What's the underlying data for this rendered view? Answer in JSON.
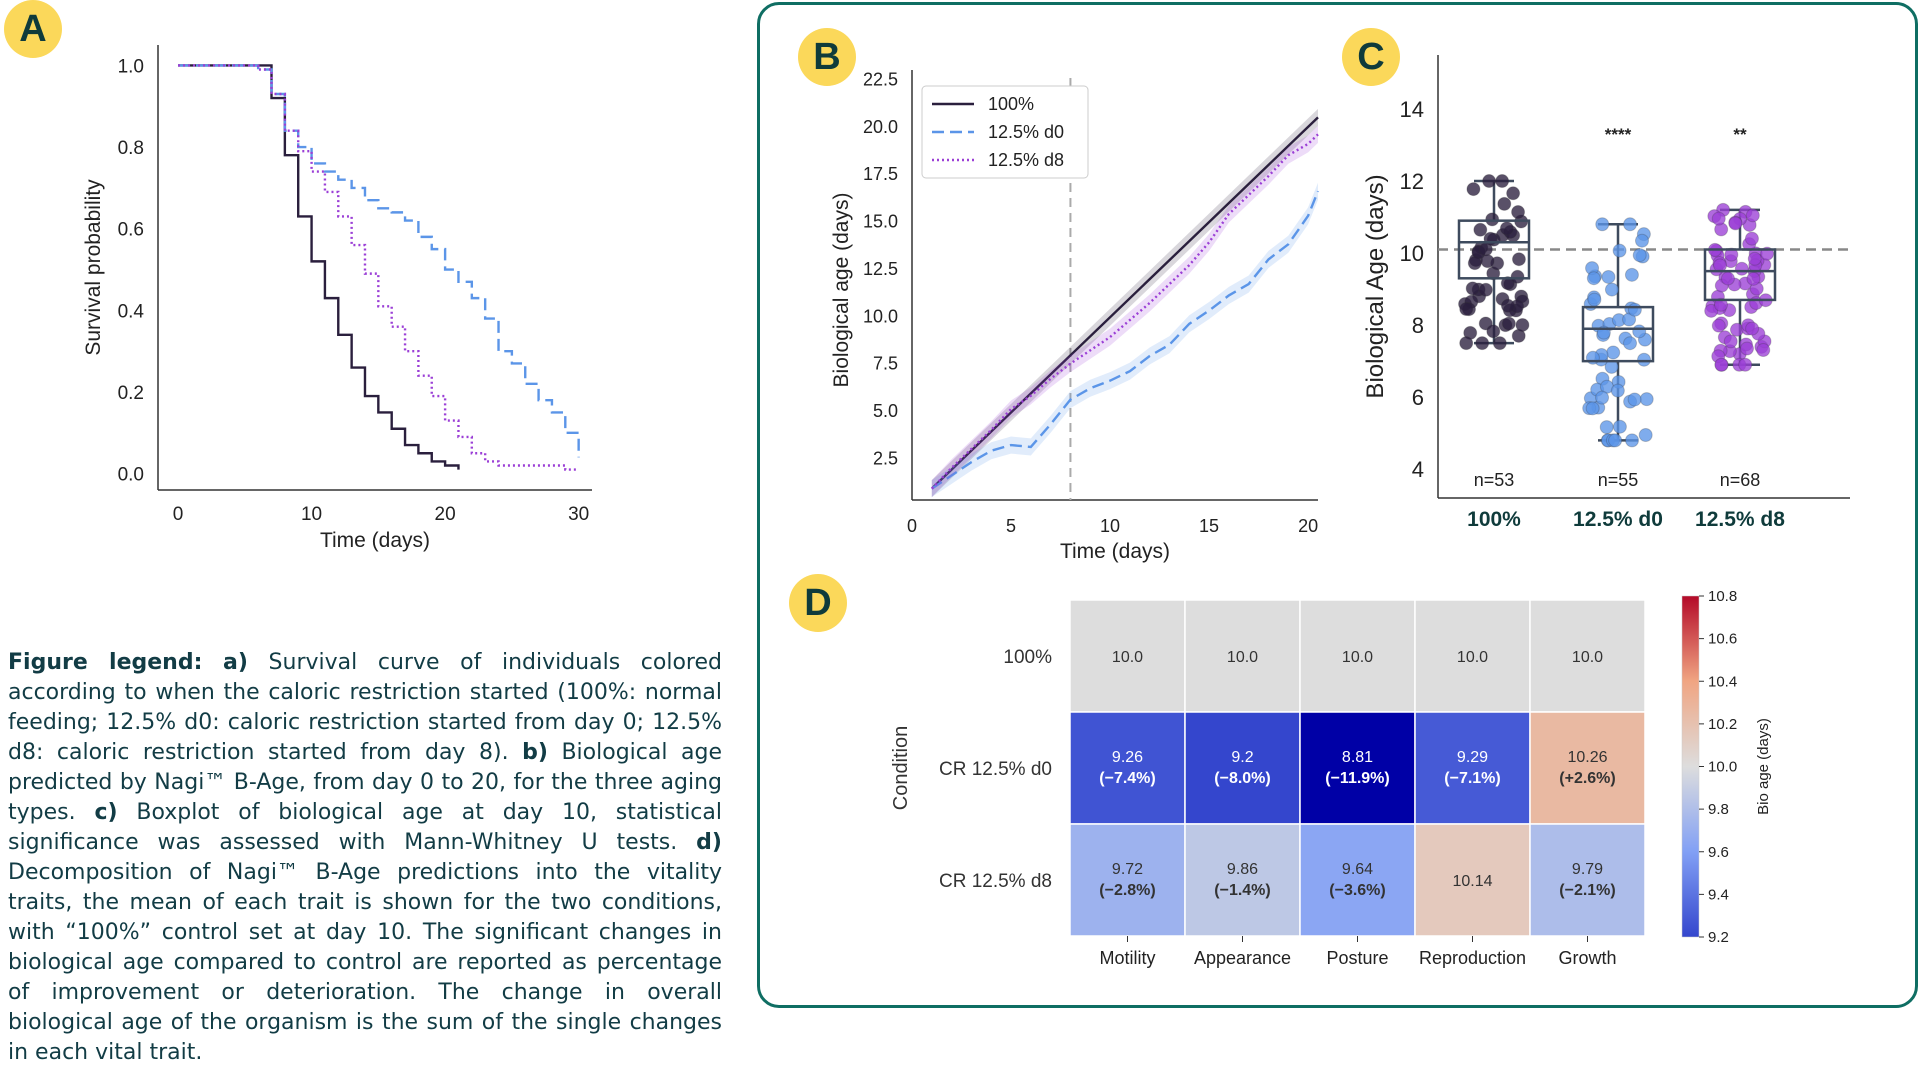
{
  "panels": {
    "a": "A",
    "b": "B",
    "c": "C",
    "d": "D"
  },
  "legend": {
    "lead": "Figure legend:",
    "a_label": "a)",
    "a_text": " Survival curve of individuals colored according to when the caloric restriction started (100%: normal feeding; 12.5% d0: caloric restriction started from day 0; 12.5% d8: caloric restriction started from day 8).",
    "b_label": "b)",
    "b_text": " Biological age predicted by Nagi™ B-Age, from day 0 to 20, for the three aging types.",
    "c_label": "c)",
    "c_text": " Boxplot of biological age at day 10, statistical significance was assessed with Mann-Whitney U tests.",
    "d_label": "d)",
    "d_text": " Decomposition of Nagi™ B-Age predictions into the vitality traits, the mean of each trait is shown for the two conditions, with “100%” control set at day 10. The significant changes in biological age compared to control are reported as percentage of improvement or deterioration. The change in overall biological age of the organism is the sum of the single changes in each vital trait."
  },
  "colors": {
    "c100": "#2a1f3d",
    "cd0": "#5b95e8",
    "cd8": "#9b3fd6",
    "badge": "#fbd85a",
    "frame": "#0f6e63",
    "text": "#123c45"
  },
  "chart_data": [
    {
      "id": "A",
      "type": "line",
      "title": "",
      "xlabel": "Time (days)",
      "ylabel": "Survival probability",
      "xlim": [
        -1.5,
        31
      ],
      "ylim": [
        -0.04,
        1.05
      ],
      "xticks": [
        0,
        10,
        20,
        30
      ],
      "yticks": [
        "0.0",
        "0.2",
        "0.4",
        "0.6",
        "0.8",
        "1.0"
      ],
      "series": [
        {
          "name": "100%",
          "style": "solid",
          "x": [
            0,
            5,
            6,
            7,
            8,
            9,
            10,
            11,
            12,
            13,
            14,
            15,
            16,
            17,
            18,
            19,
            20,
            21
          ],
          "y": [
            1.0,
            1.0,
            1.0,
            0.92,
            0.78,
            0.63,
            0.52,
            0.43,
            0.34,
            0.26,
            0.19,
            0.15,
            0.11,
            0.07,
            0.05,
            0.03,
            0.02,
            0.01
          ]
        },
        {
          "name": "12.5% d0",
          "style": "dashed",
          "x": [
            0,
            5,
            6,
            7,
            8,
            9,
            10,
            11,
            12,
            13,
            14,
            15,
            16,
            17,
            18,
            19,
            20,
            21,
            22,
            23,
            24,
            25,
            26,
            27,
            28,
            29,
            30
          ],
          "y": [
            1.0,
            1.0,
            0.99,
            0.93,
            0.84,
            0.8,
            0.76,
            0.74,
            0.72,
            0.7,
            0.67,
            0.65,
            0.64,
            0.62,
            0.58,
            0.55,
            0.5,
            0.47,
            0.43,
            0.38,
            0.3,
            0.27,
            0.22,
            0.18,
            0.15,
            0.1,
            0.04
          ]
        },
        {
          "name": "12.5% d8",
          "style": "dotted",
          "x": [
            0,
            5,
            6,
            7,
            8,
            9,
            10,
            11,
            12,
            13,
            14,
            15,
            16,
            17,
            18,
            19,
            20,
            21,
            22,
            23,
            24,
            25,
            26,
            27,
            28,
            29,
            30
          ],
          "y": [
            1.0,
            1.0,
            0.99,
            0.93,
            0.84,
            0.79,
            0.74,
            0.69,
            0.63,
            0.56,
            0.49,
            0.41,
            0.36,
            0.3,
            0.24,
            0.19,
            0.13,
            0.09,
            0.05,
            0.03,
            0.02,
            0.02,
            0.02,
            0.02,
            0.02,
            0.01,
            0.01
          ]
        }
      ]
    },
    {
      "id": "B",
      "type": "line",
      "title": "",
      "xlabel": "Time (days)",
      "ylabel": "Biological age (days)",
      "xlim": [
        0,
        20.5
      ],
      "ylim": [
        0.3,
        23.0
      ],
      "xticks": [
        0,
        5,
        10,
        15,
        20
      ],
      "yticks": [
        "2.5",
        "5.0",
        "7.5",
        "10.0",
        "12.5",
        "15.0",
        "17.5",
        "20.0",
        "22.5"
      ],
      "vline": 8,
      "legend": [
        "100%",
        "12.5% d0",
        "12.5% d8"
      ],
      "series": [
        {
          "name": "100%",
          "style": "solid",
          "x": [
            1,
            20.5
          ],
          "y": [
            0.9,
            20.5
          ]
        },
        {
          "name": "12.5% d0",
          "style": "dashed",
          "x": [
            1,
            2,
            3,
            4,
            5,
            6,
            7,
            8,
            9,
            10,
            11,
            12,
            13,
            14,
            15,
            16,
            17,
            18,
            19,
            20,
            20.5
          ],
          "y": [
            0.9,
            1.6,
            2.3,
            2.9,
            3.2,
            3.1,
            4.3,
            5.6,
            6.2,
            6.6,
            7.1,
            7.9,
            8.5,
            9.6,
            10.3,
            11.1,
            11.7,
            13.0,
            13.8,
            15.3,
            16.6
          ]
        },
        {
          "name": "12.5% d8",
          "style": "dotted",
          "x": [
            1,
            2,
            3,
            4,
            5,
            6,
            7,
            8,
            9,
            10,
            11,
            12,
            13,
            14,
            15,
            16,
            17,
            18,
            19,
            20,
            20.5
          ],
          "y": [
            0.9,
            2.0,
            3.0,
            4.0,
            5.1,
            5.8,
            6.7,
            7.5,
            8.2,
            8.9,
            9.8,
            10.7,
            11.7,
            12.7,
            13.9,
            15.4,
            16.4,
            17.4,
            18.5,
            19.1,
            19.6
          ]
        }
      ]
    },
    {
      "id": "C",
      "type": "box",
      "title": "",
      "xlabel": "",
      "ylabel": "Biological Age (days)",
      "ylim": [
        3.2,
        15.5
      ],
      "yticks": [
        "4",
        "6",
        "8",
        "10",
        "12",
        "14"
      ],
      "hline": 10.1,
      "categories": [
        "100%",
        "12.5% d0",
        "12.5% d8"
      ],
      "boxes": [
        {
          "name": "100%",
          "min": 7.5,
          "q1": 9.3,
          "median": 10.3,
          "q3": 10.9,
          "max": 12.0,
          "n": "n=53",
          "sig": ""
        },
        {
          "name": "12.5% d0",
          "min": 4.8,
          "q1": 7.0,
          "median": 7.9,
          "q3": 8.5,
          "max": 10.8,
          "n": "n=55",
          "sig": "****"
        },
        {
          "name": "12.5% d8",
          "min": 6.9,
          "q1": 8.7,
          "median": 9.5,
          "q3": 10.1,
          "max": 11.2,
          "n": "n=68",
          "sig": "**"
        }
      ]
    },
    {
      "id": "D",
      "type": "heatmap",
      "title": "",
      "ylabel": "Condition",
      "columns": [
        "Motility",
        "Appearance",
        "Posture",
        "Reproduction",
        "Growth"
      ],
      "rows": [
        "100%",
        "CR 12.5% d0",
        "CR 12.5% d8"
      ],
      "values": [
        [
          10.0,
          10.0,
          10.0,
          10.0,
          10.0
        ],
        [
          9.26,
          9.2,
          8.81,
          9.29,
          10.26
        ],
        [
          9.72,
          9.86,
          9.64,
          10.14,
          9.79
        ]
      ],
      "value_labels": [
        [
          "10.0",
          "10.0",
          "10.0",
          "10.0",
          "10.0"
        ],
        [
          "9.26",
          "9.2",
          "8.81",
          "9.29",
          "10.26"
        ],
        [
          "9.72",
          "9.86",
          "9.64",
          "10.14",
          "9.79"
        ]
      ],
      "pct_labels": [
        [
          "",
          "",
          "",
          "",
          ""
        ],
        [
          "(−7.4%)",
          "(−8.0%)",
          "(−11.9%)",
          "(−7.1%)",
          "(+2.6%)"
        ],
        [
          "(−2.8%)",
          "(−1.4%)",
          "(−3.6%)",
          "",
          "(−2.1%)"
        ]
      ],
      "colorbar": {
        "label": "Bio age (days)",
        "min": 9.2,
        "max": 10.8,
        "ticks": [
          "9.2",
          "9.4",
          "9.6",
          "9.8",
          "10.0",
          "10.2",
          "10.4",
          "10.6",
          "10.8"
        ]
      }
    }
  ]
}
